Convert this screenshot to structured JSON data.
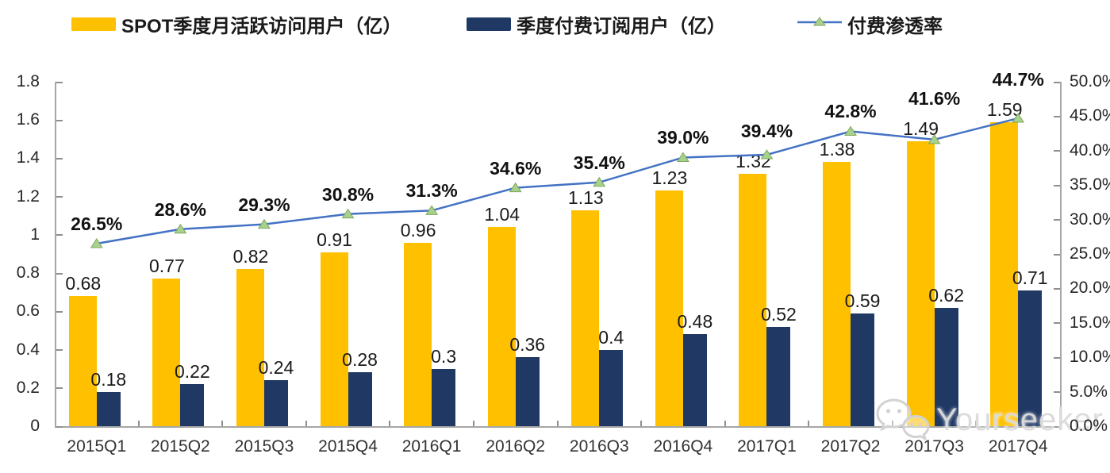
{
  "legend": {
    "items": [
      {
        "label": "SPOT季度月活跃访问用户（亿）",
        "type": "bar",
        "color": "#FFC000"
      },
      {
        "label": "季度付费订阅用户（亿）",
        "type": "bar",
        "color": "#1F3864"
      },
      {
        "label": "付费渗透率",
        "type": "line",
        "color": "#4472C4",
        "marker_color": "#A9D18E"
      }
    ]
  },
  "watermark": {
    "text": "Yourseeker",
    "icon": "wechat-icon"
  },
  "chart_data": {
    "type": "bar",
    "subtype": "combo-bar-line-dual-axis",
    "categories": [
      "2015Q1",
      "2015Q2",
      "2015Q3",
      "2015Q4",
      "2016Q1",
      "2016Q2",
      "2016Q3",
      "2016Q4",
      "2017Q1",
      "2017Q2",
      "2017Q3",
      "2017Q4"
    ],
    "series": [
      {
        "name": "SPOT季度月活跃访问用户（亿）",
        "type": "bar",
        "yaxis": "left",
        "color": "#FFC000",
        "values": [
          0.68,
          0.77,
          0.82,
          0.91,
          0.96,
          1.04,
          1.13,
          1.23,
          1.32,
          1.38,
          1.49,
          1.59
        ],
        "labels": [
          "0.68",
          "0.77",
          "0.82",
          "0.91",
          "0.96",
          "1.04",
          "1.13",
          "1.23",
          "1.32",
          "1.38",
          "1.49",
          "1.59"
        ]
      },
      {
        "name": "季度付费订阅用户（亿）",
        "type": "bar",
        "yaxis": "left",
        "color": "#1F3864",
        "values": [
          0.18,
          0.22,
          0.24,
          0.28,
          0.3,
          0.36,
          0.4,
          0.48,
          0.52,
          0.59,
          0.62,
          0.71
        ],
        "labels": [
          "0.18",
          "0.22",
          "0.24",
          "0.28",
          "0.3",
          "0.36",
          "0.4",
          "0.48",
          "0.52",
          "0.59",
          "0.62",
          "0.71"
        ]
      },
      {
        "name": "付费渗透率",
        "type": "line",
        "yaxis": "right",
        "color": "#4472C4",
        "marker": "triangle-up",
        "marker_color": "#A9D18E",
        "marker_edge_color": "#7CA85C",
        "values": [
          26.5,
          28.6,
          29.3,
          30.8,
          31.3,
          34.6,
          35.4,
          39.0,
          39.4,
          42.8,
          41.6,
          44.7
        ],
        "labels": [
          "26.5%",
          "28.6%",
          "29.3%",
          "30.8%",
          "31.3%",
          "34.6%",
          "35.4%",
          "39.0%",
          "39.4%",
          "42.8%",
          "41.6%",
          "44.7%"
        ]
      }
    ],
    "left_axis": {
      "min": 0,
      "max": 1.8,
      "step": 0.2,
      "tick_labels": [
        "1.8",
        "1.6",
        "1.4",
        "1.2",
        "1",
        "0.8",
        "0.6",
        "0.4",
        "0.2",
        "0"
      ]
    },
    "right_axis": {
      "min": 0,
      "max": 50,
      "step": 5,
      "tick_labels": [
        "50.0%",
        "45.0%",
        "40.0%",
        "35.0%",
        "30.0%",
        "25.0%",
        "20.0%",
        "15.0%",
        "10.0%",
        "5.0%",
        "0.0%"
      ]
    },
    "grid": false,
    "legend_position": "top"
  }
}
